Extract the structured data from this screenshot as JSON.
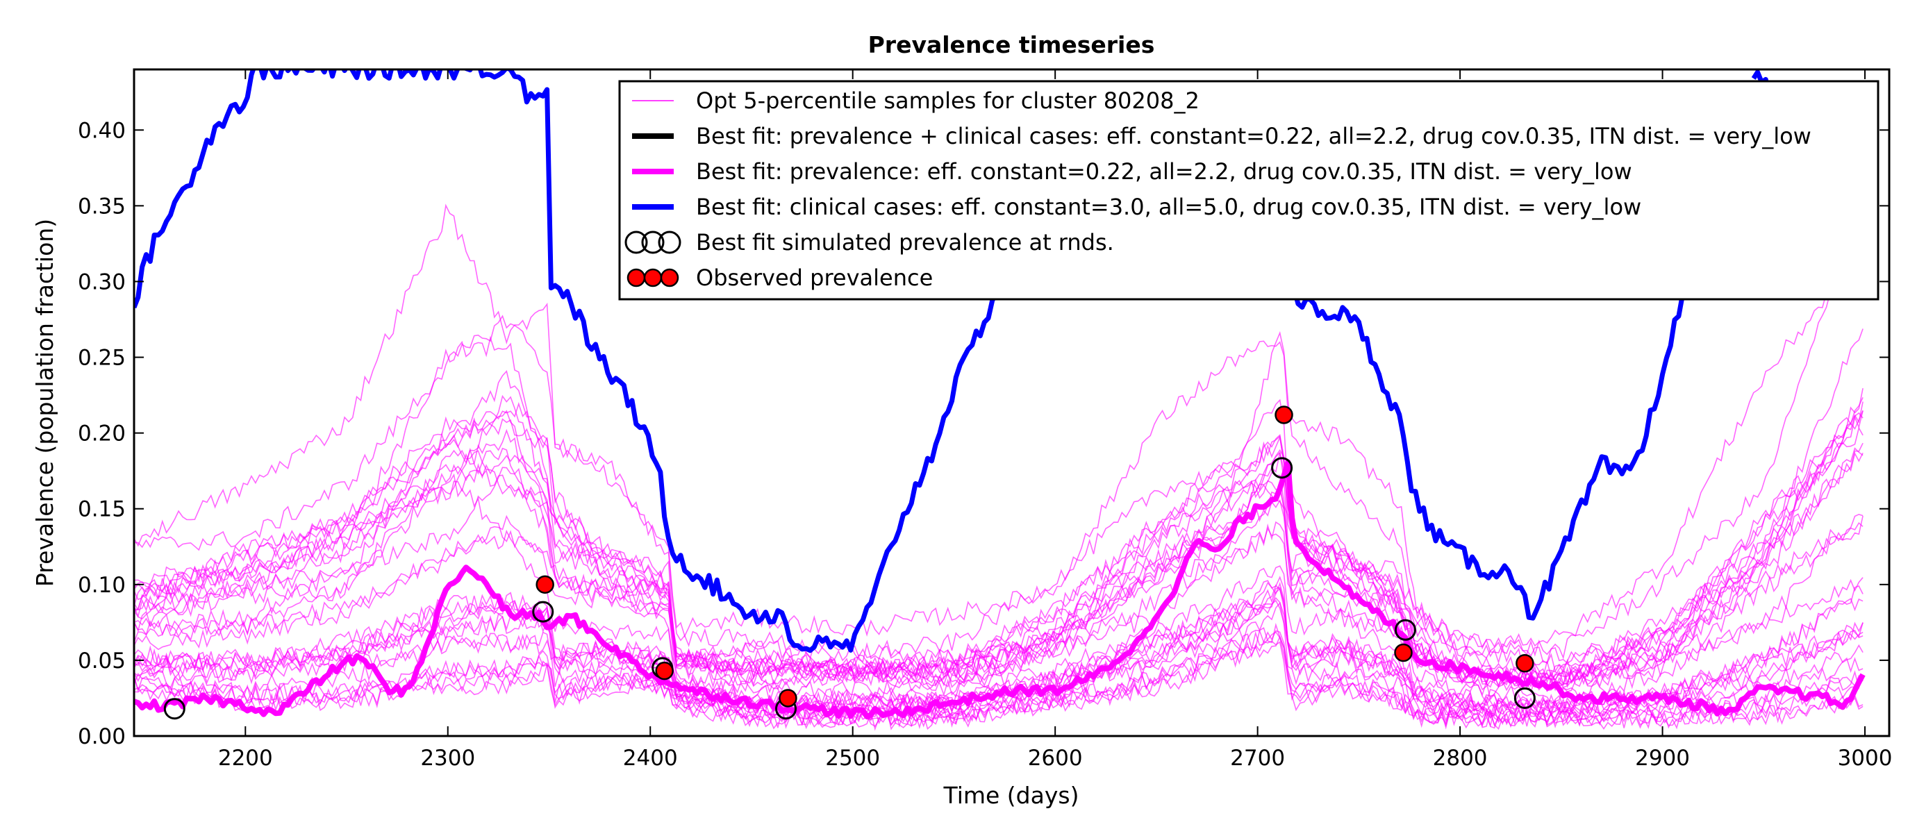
{
  "chart_data": {
    "type": "line",
    "title": "Prevalence timeseries",
    "xlabel": "Time (days)",
    "ylabel": "Prevalence (population fraction)",
    "xlim": [
      2145,
      3012
    ],
    "ylim": [
      0.0,
      0.44
    ],
    "xticks": [
      2200,
      2300,
      2400,
      2500,
      2600,
      2700,
      2800,
      2900,
      3000
    ],
    "yticks": [
      0.0,
      0.05,
      0.1,
      0.15,
      0.2,
      0.25,
      0.3,
      0.35,
      0.4
    ],
    "xtick_labels": [
      "2200",
      "2300",
      "2400",
      "2500",
      "2600",
      "2700",
      "2800",
      "2900",
      "3000"
    ],
    "ytick_labels": [
      "0.00",
      "0.05",
      "0.10",
      "0.15",
      "0.20",
      "0.25",
      "0.30",
      "0.35",
      "0.40"
    ],
    "grid": false,
    "legend_position": "top-right",
    "legend": [
      {
        "label": "Opt 5-percentile samples for cluster 80208_2",
        "kind": "thin-line",
        "color": "#ff00ff"
      },
      {
        "label": "Best fit: prevalence + clinical cases: eff. constant=0.22, all=2.2, drug cov.0.35, ITN dist. = very_low",
        "kind": "thick-line",
        "color": "#000000"
      },
      {
        "label": "Best fit: prevalence: eff. constant=0.22, all=2.2, drug cov.0.35, ITN dist. = very_low",
        "kind": "thick-line",
        "color": "#ff00ff"
      },
      {
        "label": "Best fit: clinical cases: eff. constant=3.0, all=5.0, drug cov.0.35, ITN dist. = very_low",
        "kind": "thick-line",
        "color": "#0000ff"
      },
      {
        "label": "Best fit simulated prevalence at rnds.",
        "kind": "open-circles",
        "color": "#000000"
      },
      {
        "label": "Observed prevalence",
        "kind": "red-circles",
        "color": "#ff0000"
      }
    ],
    "series": [
      {
        "name": "Best fit: clinical cases: eff. constant=3.0, all=5.0, drug cov.0.35, ITN dist. = very_low",
        "color": "#0000ff",
        "x": [
          2145,
          2150,
          2160,
          2170,
          2180,
          2190,
          2200,
          2205,
          2212,
          2220,
          2300,
          2335,
          2340,
          2345,
          2349,
          2351,
          2360,
          2370,
          2380,
          2390,
          2400,
          2405,
          2409,
          2413,
          2420,
          2430,
          2440,
          2450,
          2460,
          2466,
          2470,
          2480,
          2490,
          2500,
          2510,
          2520,
          2530,
          2540,
          2550,
          2560,
          2570,
          2582
        ],
        "y": [
          0.28,
          0.31,
          0.34,
          0.36,
          0.39,
          0.41,
          0.42,
          0.44,
          0.44,
          0.44,
          0.44,
          0.44,
          0.42,
          0.42,
          0.43,
          0.3,
          0.29,
          0.26,
          0.24,
          0.22,
          0.19,
          0.17,
          0.13,
          0.12,
          0.11,
          0.1,
          0.09,
          0.08,
          0.08,
          0.08,
          0.06,
          0.06,
          0.06,
          0.06,
          0.09,
          0.13,
          0.16,
          0.19,
          0.23,
          0.26,
          0.29,
          0.31
        ]
      },
      {
        "name": "Best fit: clinical cases: eff. constant=3.0, all=5.0, drug cov.0.35, ITN dist. = very_low",
        "color": "#0000ff",
        "x": [
          2718,
          2730,
          2740,
          2750,
          2760,
          2770,
          2775,
          2780,
          2790,
          2800,
          2810,
          2820,
          2830,
          2835,
          2840,
          2850,
          2860,
          2870,
          2880,
          2890,
          2900,
          2910,
          2915
        ],
        "y": [
          0.29,
          0.28,
          0.28,
          0.27,
          0.24,
          0.21,
          0.17,
          0.15,
          0.13,
          0.12,
          0.11,
          0.11,
          0.1,
          0.08,
          0.09,
          0.12,
          0.15,
          0.18,
          0.17,
          0.19,
          0.24,
          0.29,
          0.3
        ]
      },
      {
        "name": "Best fit: clinical cases: eff. constant=3.0, all=5.0, drug cov.0.35, ITN dist. = very_low",
        "color": "#0000ff",
        "x": [
          2945,
          2950,
          2955,
          2960
        ],
        "y": [
          0.44,
          0.43,
          0.42,
          0.44
        ]
      },
      {
        "name": "Best fit: prevalence: eff. constant=0.22, all=2.2, drug cov.0.35, ITN dist. = very_low",
        "color": "#ff00ff",
        "x": [
          2145,
          2165,
          2180,
          2200,
          2215,
          2230,
          2250,
          2260,
          2270,
          2280,
          2290,
          2300,
          2310,
          2320,
          2330,
          2340,
          2345,
          2350,
          2360,
          2370,
          2380,
          2390,
          2400,
          2410,
          2420,
          2440,
          2460,
          2480,
          2500,
          2520,
          2540,
          2560,
          2580,
          2600,
          2620,
          2640,
          2660,
          2670,
          2680,
          2690,
          2700,
          2710,
          2715,
          2718,
          2725,
          2740,
          2760,
          2770,
          2780,
          2800,
          2820,
          2840,
          2860,
          2880,
          2900,
          2920,
          2935,
          2945,
          2960,
          2980,
          2990,
          3000
        ],
        "y": [
          0.02,
          0.02,
          0.025,
          0.02,
          0.015,
          0.03,
          0.05,
          0.05,
          0.03,
          0.03,
          0.06,
          0.1,
          0.11,
          0.1,
          0.08,
          0.08,
          0.08,
          0.07,
          0.08,
          0.07,
          0.06,
          0.05,
          0.04,
          0.035,
          0.03,
          0.025,
          0.02,
          0.018,
          0.015,
          0.015,
          0.02,
          0.025,
          0.03,
          0.03,
          0.04,
          0.06,
          0.1,
          0.13,
          0.12,
          0.14,
          0.15,
          0.16,
          0.18,
          0.13,
          0.12,
          0.1,
          0.08,
          0.07,
          0.05,
          0.045,
          0.04,
          0.035,
          0.025,
          0.025,
          0.025,
          0.02,
          0.015,
          0.03,
          0.03,
          0.025,
          0.02,
          0.04
        ]
      }
    ],
    "samples": {
      "name": "Opt 5-percentile samples for cluster 80208_2",
      "color": "#ff00ff",
      "count": 30,
      "x": [
        2145,
        2200,
        2250,
        2300,
        2330,
        2350,
        2352,
        2380,
        2410,
        2412,
        2450,
        2500,
        2550,
        2600,
        2650,
        2690,
        2712,
        2716,
        2740,
        2770,
        2778,
        2800,
        2850,
        2900,
        2950,
        3000
      ],
      "low": [
        0.03,
        0.02,
        0.02,
        0.03,
        0.03,
        0.04,
        0.02,
        0.03,
        0.03,
        0.02,
        0.01,
        0.01,
        0.01,
        0.02,
        0.03,
        0.05,
        0.06,
        0.02,
        0.03,
        0.02,
        0.01,
        0.01,
        0.01,
        0.01,
        0.01,
        0.02
      ],
      "high": [
        0.13,
        0.17,
        0.2,
        0.3,
        0.32,
        0.26,
        0.2,
        0.17,
        0.13,
        0.07,
        0.07,
        0.07,
        0.07,
        0.1,
        0.18,
        0.22,
        0.27,
        0.19,
        0.18,
        0.15,
        0.1,
        0.07,
        0.06,
        0.1,
        0.2,
        0.33
      ]
    },
    "simulated_points": {
      "name": "Best fit simulated prevalence at rnds.",
      "x": [
        2165,
        2347,
        2406,
        2467,
        2712,
        2773,
        2832
      ],
      "y": [
        0.018,
        0.082,
        0.045,
        0.018,
        0.177,
        0.07,
        0.025
      ]
    },
    "observed_points": {
      "name": "Observed prevalence",
      "x": [
        2348,
        2407,
        2468,
        2713,
        2772,
        2832
      ],
      "y": [
        0.1,
        0.043,
        0.025,
        0.212,
        0.055,
        0.048
      ]
    }
  }
}
